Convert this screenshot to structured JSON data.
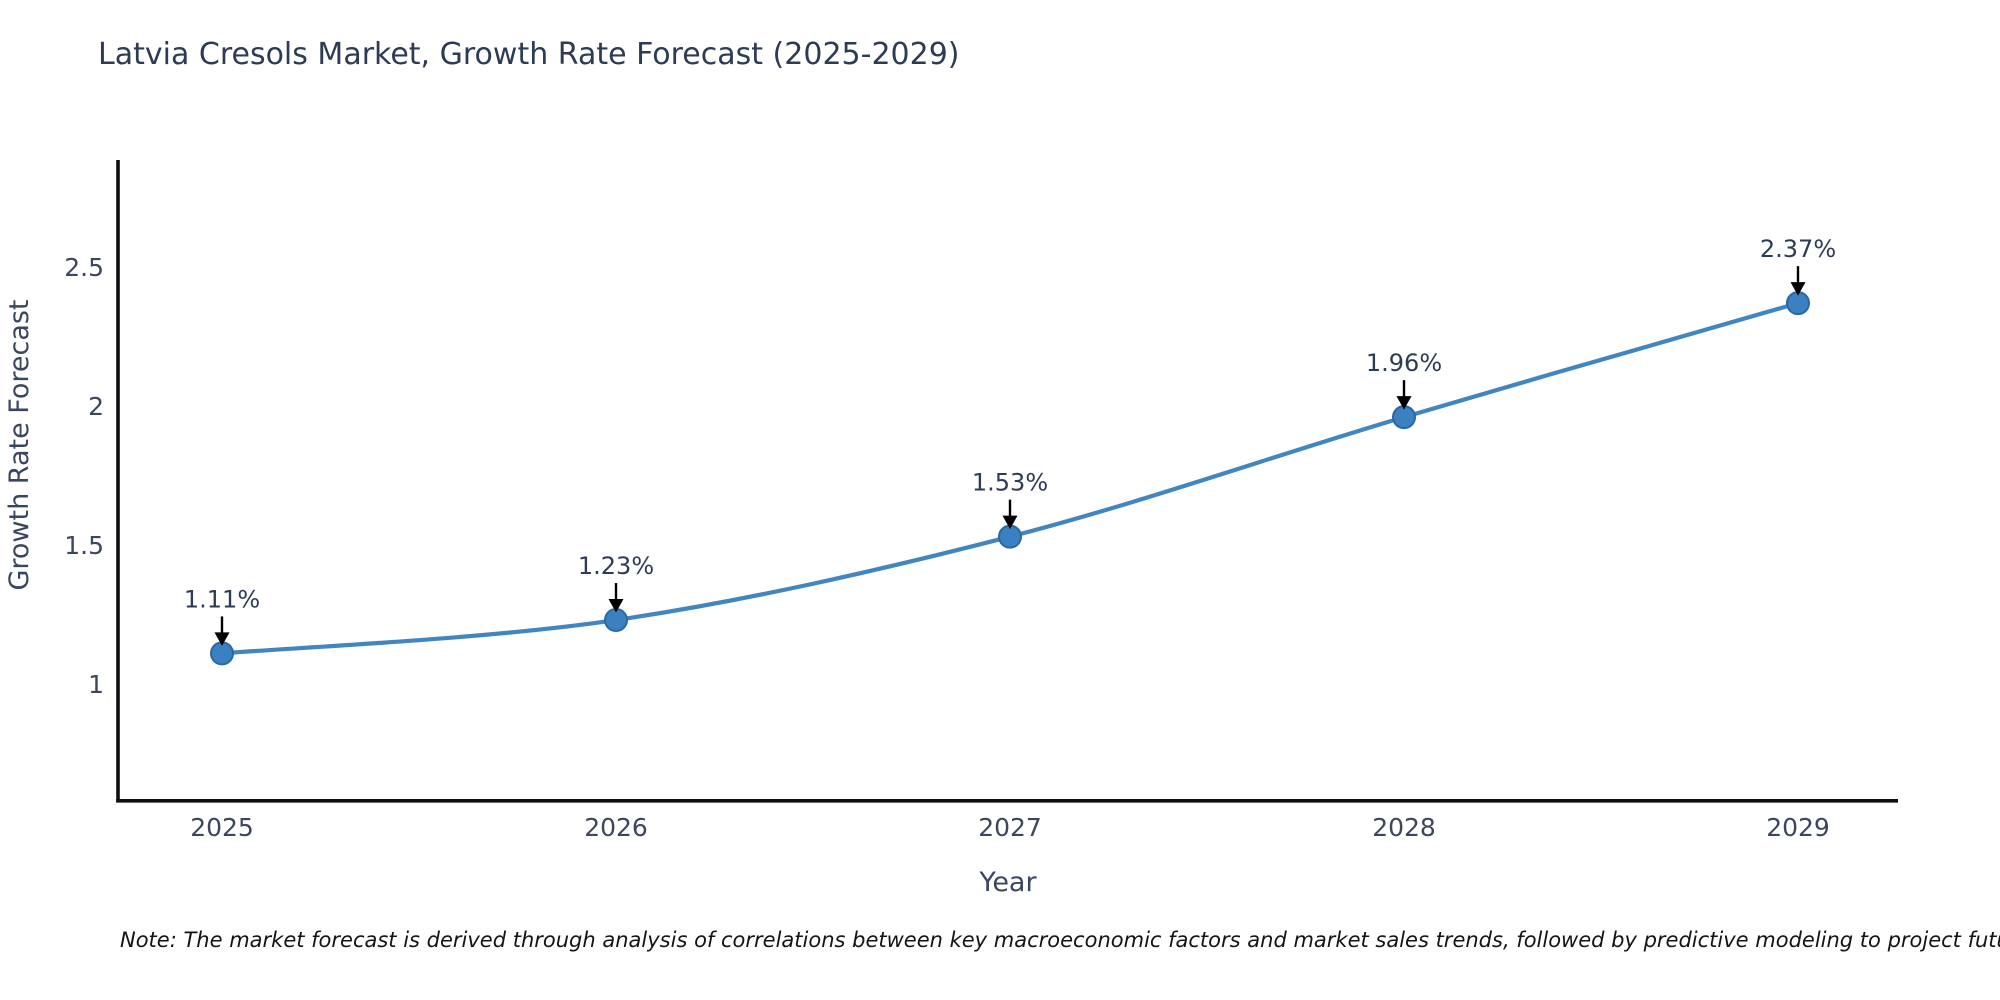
{
  "chart_data": {
    "type": "line",
    "title": "Latvia Cresols Market, Growth Rate Forecast (2025-2029)",
    "xlabel": "Year",
    "ylabel": "Growth Rate Forecast",
    "x": [
      2025,
      2026,
      2027,
      2028,
      2029
    ],
    "series": [
      {
        "name": "Growth Rate Forecast",
        "values": [
          1.11,
          1.23,
          1.53,
          1.96,
          2.37
        ]
      }
    ],
    "point_labels": [
      "1.11%",
      "1.23%",
      "1.53%",
      "1.96%",
      "2.37%"
    ],
    "xticks": [
      "2025",
      "2026",
      "2027",
      "2028",
      "2029"
    ],
    "yticks": [
      "1",
      "1.5",
      "2",
      "2.5"
    ],
    "ytick_values": [
      1,
      1.5,
      2,
      2.5
    ],
    "ylim": [
      0.58,
      2.89
    ],
    "grid": false,
    "legend": "none",
    "line_shape": "spline",
    "colors": {
      "line": "#4286c0",
      "marker_fill": "#3b81c2",
      "marker_edge": "#2b67a0",
      "arrow": "#000000",
      "text": "#2e3b55",
      "axis": "#0f0f0f"
    }
  },
  "note": "Note: The market forecast is derived through analysis of correlations between key macroeconomic factors and market sales trends, followed by predictive modeling to project future sales"
}
